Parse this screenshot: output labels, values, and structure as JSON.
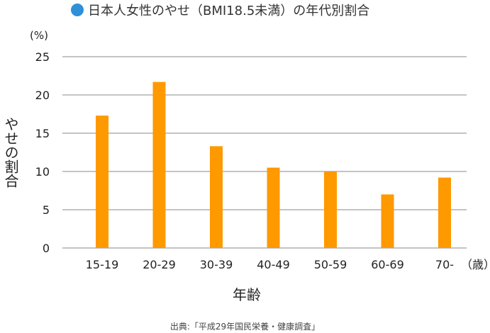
{
  "title": "日本人女性のやせ（BMI18.5未満）の年代別割合",
  "colors": {
    "bar": "#ff9900",
    "grid": "#888888",
    "bullet": "#2f8fd8",
    "text": "#222222"
  },
  "source": "出典:「平成29年国民栄養・健康調査」",
  "chart_data": {
    "type": "bar",
    "title": "日本人女性のやせ（BMI18.5未満）の年代別割合",
    "xlabel": "年齢",
    "ylabel": "やせの割合",
    "y_unit_label": "(%)",
    "x_unit_label": "（歳）",
    "categories": [
      "15-19",
      "20-29",
      "30-39",
      "40-49",
      "50-59",
      "60-69",
      "70-"
    ],
    "values": [
      17.3,
      21.7,
      13.3,
      10.5,
      10.0,
      7.0,
      9.2
    ],
    "ylim": [
      0,
      25
    ],
    "yticks": [
      0,
      5,
      10,
      15,
      20,
      25
    ],
    "grid": true,
    "legend": "none"
  }
}
